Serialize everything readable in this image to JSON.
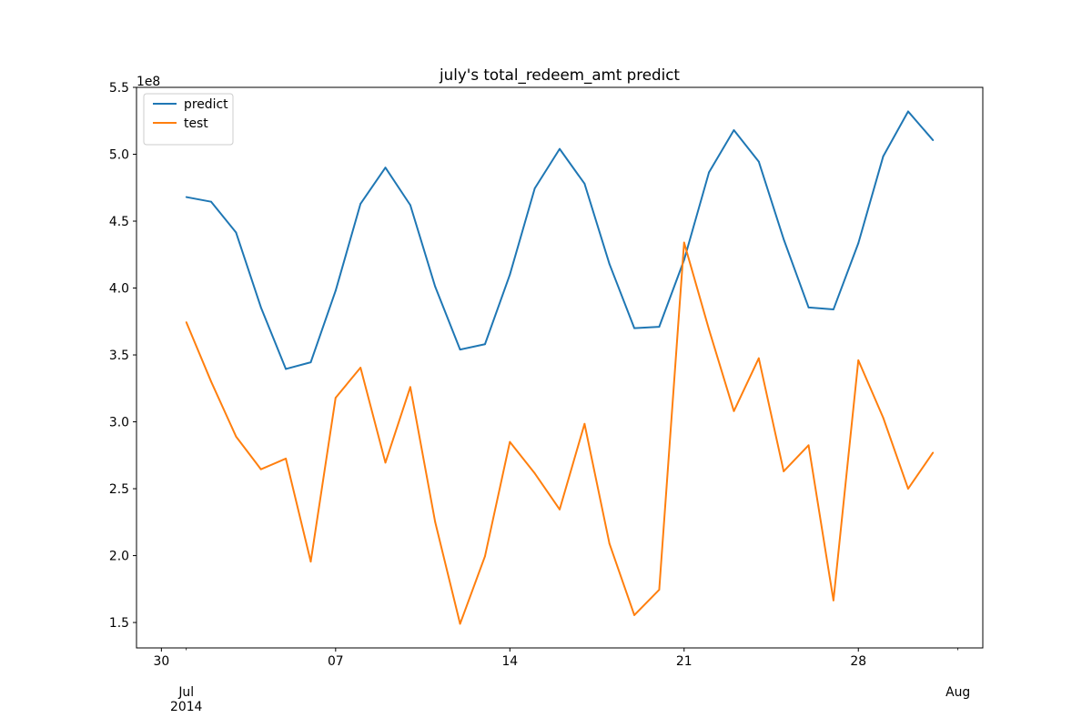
{
  "chart_data": {
    "type": "line",
    "title": "july's total_redeem_amt predict",
    "xlabel": "",
    "ylabel": "",
    "y_scale_label": "1e8",
    "x": [
      "2014-07-01",
      "2014-07-02",
      "2014-07-03",
      "2014-07-04",
      "2014-07-05",
      "2014-07-06",
      "2014-07-07",
      "2014-07-08",
      "2014-07-09",
      "2014-07-10",
      "2014-07-11",
      "2014-07-12",
      "2014-07-13",
      "2014-07-14",
      "2014-07-15",
      "2014-07-16",
      "2014-07-17",
      "2014-07-18",
      "2014-07-19",
      "2014-07-20",
      "2014-07-21",
      "2014-07-22",
      "2014-07-23",
      "2014-07-24",
      "2014-07-25",
      "2014-07-26",
      "2014-07-27",
      "2014-07-28",
      "2014-07-29",
      "2014-07-30",
      "2014-07-31"
    ],
    "series": [
      {
        "name": "predict",
        "color": "#1f77b4",
        "values": [
          4.68,
          4.645,
          4.415,
          3.855,
          3.395,
          3.445,
          3.98,
          4.63,
          4.9,
          4.62,
          4.01,
          3.54,
          3.58,
          4.1,
          4.745,
          5.04,
          4.78,
          4.18,
          3.7,
          3.71,
          4.21,
          4.865,
          5.18,
          4.945,
          4.365,
          3.855,
          3.84,
          4.335,
          4.985,
          5.32,
          5.105
        ]
      },
      {
        "name": "test",
        "color": "#ff7f0e",
        "values": [
          3.745,
          3.3,
          2.89,
          2.645,
          2.725,
          1.955,
          3.18,
          3.405,
          2.695,
          3.26,
          2.25,
          1.49,
          1.995,
          2.85,
          2.615,
          2.345,
          2.985,
          2.09,
          1.555,
          1.745,
          4.34,
          3.69,
          3.08,
          3.475,
          2.63,
          2.825,
          1.665,
          3.46,
          3.03,
          2.5,
          2.77
        ]
      }
    ],
    "ylim": [
      1.31,
      5.5
    ],
    "yticks": [
      1.5,
      2.0,
      2.5,
      3.0,
      3.5,
      4.0,
      4.5,
      5.0,
      5.5
    ],
    "ytick_labels": [
      "1.5",
      "2.0",
      "2.5",
      "3.0",
      "3.5",
      "4.0",
      "4.5",
      "5.0",
      "5.5"
    ],
    "xlim": [
      "2014-06-29",
      "2014-08-02"
    ],
    "x_major_ticks": [
      {
        "date": "2014-06-30",
        "label": "30"
      },
      {
        "date": "2014-07-07",
        "label": "07"
      },
      {
        "date": "2014-07-14",
        "label": "14"
      },
      {
        "date": "2014-07-21",
        "label": "21"
      },
      {
        "date": "2014-07-28",
        "label": "28"
      }
    ],
    "x_minor_labels": [
      {
        "date": "2014-07-01",
        "label": "Jul",
        "sublabel": "2014"
      },
      {
        "date": "2014-08-01",
        "label": "Aug",
        "sublabel": ""
      }
    ],
    "legend_position": "upper-left",
    "grid": false
  }
}
